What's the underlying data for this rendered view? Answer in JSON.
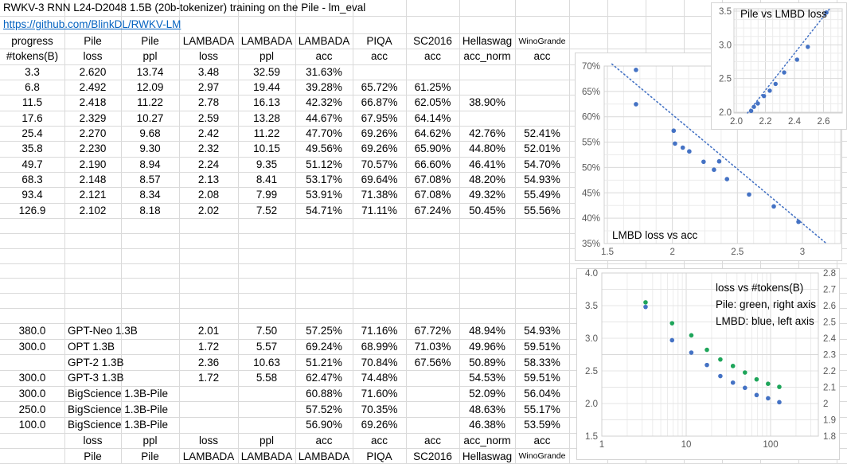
{
  "colors": {
    "blue": "#4472C4",
    "green": "#1EA55A",
    "link": "#0563C1"
  },
  "sheet": {
    "title": "RWKV-3 RNN L24-D2048 1.5B (20b-tokenizer) training on the Pile - lm_eval",
    "link": "https://github.com/BlinkDL/RWKV-LM",
    "top_header": [
      "progress",
      "Pile",
      "Pile",
      "LAMBADA",
      "LAMBADA",
      "LAMBADA",
      "PIQA",
      "SC2016",
      "Hellaswag",
      "WinoGrande"
    ],
    "sub_header": [
      "#tokens(B)",
      "loss",
      "ppl",
      "loss",
      "ppl",
      "acc",
      "acc",
      "acc",
      "acc_norm",
      "acc"
    ],
    "rwkv_rows": [
      [
        "3.3",
        "2.620",
        "13.74",
        "3.48",
        "32.59",
        "31.63%",
        "",
        "",
        "",
        ""
      ],
      [
        "6.8",
        "2.492",
        "12.09",
        "2.97",
        "19.44",
        "39.28%",
        "65.72%",
        "61.25%",
        "",
        ""
      ],
      [
        "11.5",
        "2.418",
        "11.22",
        "2.78",
        "16.13",
        "42.32%",
        "66.87%",
        "62.05%",
        "38.90%",
        ""
      ],
      [
        "17.6",
        "2.329",
        "10.27",
        "2.59",
        "13.28",
        "44.67%",
        "67.95%",
        "64.14%",
        "",
        ""
      ],
      [
        "25.4",
        "2.270",
        "9.68",
        "2.42",
        "11.22",
        "47.70%",
        "69.26%",
        "64.62%",
        "42.76%",
        "52.41%"
      ],
      [
        "35.8",
        "2.230",
        "9.30",
        "2.32",
        "10.15",
        "49.56%",
        "69.26%",
        "65.90%",
        "44.80%",
        "52.01%"
      ],
      [
        "49.7",
        "2.190",
        "8.94",
        "2.24",
        "9.35",
        "51.12%",
        "70.57%",
        "66.60%",
        "46.41%",
        "54.70%"
      ],
      [
        "68.3",
        "2.148",
        "8.57",
        "2.13",
        "8.41",
        "53.17%",
        "69.64%",
        "67.08%",
        "48.20%",
        "54.93%"
      ],
      [
        "93.4",
        "2.121",
        "8.34",
        "2.08",
        "7.99",
        "53.91%",
        "71.38%",
        "67.08%",
        "49.32%",
        "55.49%"
      ],
      [
        "126.9",
        "2.102",
        "8.18",
        "2.02",
        "7.52",
        "54.71%",
        "71.11%",
        "67.24%",
        "50.45%",
        "55.56%"
      ]
    ],
    "baseline_rows": [
      {
        "tokens": "380.0",
        "model": "GPT-Neo 1.3B",
        "cells": [
          "2.01",
          "7.50",
          "57.25%",
          "71.16%",
          "67.72%",
          "48.94%",
          "54.93%"
        ]
      },
      {
        "tokens": "300.0",
        "model": "OPT 1.3B",
        "cells": [
          "1.72",
          "5.57",
          "69.24%",
          "68.99%",
          "71.03%",
          "49.96%",
          "59.51%"
        ]
      },
      {
        "tokens": "",
        "model": "GPT-2 1.3B",
        "cells": [
          "2.36",
          "10.63",
          "51.21%",
          "70.84%",
          "67.56%",
          "50.89%",
          "58.33%"
        ]
      },
      {
        "tokens": "300.0",
        "model": "GPT-3 1.3B",
        "cells": [
          "1.72",
          "5.58",
          "62.47%",
          "74.48%",
          "",
          "54.53%",
          "59.51%"
        ]
      },
      {
        "tokens": "300.0",
        "model": "BigScience 1.3B-Pile",
        "cells": [
          "",
          "",
          "60.88%",
          "71.60%",
          "",
          "52.09%",
          "56.04%"
        ]
      },
      {
        "tokens": "250.0",
        "model": "BigScience 1.3B-Pile",
        "cells": [
          "",
          "",
          "57.52%",
          "70.35%",
          "",
          "48.63%",
          "55.17%"
        ]
      },
      {
        "tokens": "100.0",
        "model": "BigScience 1.3B-Pile",
        "cells": [
          "",
          "",
          "56.90%",
          "69.26%",
          "",
          "46.38%",
          "53.59%"
        ]
      }
    ],
    "footer_sub": [
      "",
      "loss",
      "ppl",
      "loss",
      "ppl",
      "acc",
      "acc",
      "acc",
      "acc_norm",
      "acc"
    ],
    "footer_main": [
      "",
      "Pile",
      "Pile",
      "LAMBADA",
      "LAMBADA",
      "LAMBADA",
      "PIQA",
      "SC2016",
      "Hellaswag",
      "WinoGrande"
    ]
  },
  "chart_data": [
    {
      "id": "pile-vs-lmbd-loss",
      "type": "scatter",
      "title": "Pile vs LMBD loss",
      "xlim": [
        2.0,
        2.73
      ],
      "ylim": [
        2.0,
        3.55
      ],
      "xticks": [
        "2.0",
        "2.2",
        "2.4",
        "2.6"
      ],
      "yticks": [
        "2.0",
        "2.5",
        "3.0",
        "3.5"
      ],
      "trendline": "dotted",
      "point_color": "#4472C4",
      "points": [
        [
          2.62,
          3.48
        ],
        [
          2.492,
          2.97
        ],
        [
          2.418,
          2.78
        ],
        [
          2.329,
          2.59
        ],
        [
          2.27,
          2.42
        ],
        [
          2.23,
          2.32
        ],
        [
          2.19,
          2.24
        ],
        [
          2.148,
          2.13
        ],
        [
          2.121,
          2.08
        ],
        [
          2.102,
          2.02
        ]
      ]
    },
    {
      "id": "lmbd-loss-vs-acc",
      "type": "scatter",
      "title": "LMBD loss vs acc",
      "xlim": [
        1.47,
        3.29
      ],
      "ylim": [
        35,
        70
      ],
      "xticks": [
        "1.5",
        "2",
        "2.5",
        "3"
      ],
      "yticks": [
        "35%",
        "40%",
        "45%",
        "50%",
        "55%",
        "60%",
        "65%",
        "70%"
      ],
      "trendline": "dotted",
      "point_color": "#4472C4",
      "points": [
        [
          3.48,
          31.63
        ],
        [
          2.97,
          39.28
        ],
        [
          2.78,
          42.32
        ],
        [
          2.59,
          44.67
        ],
        [
          2.42,
          47.7
        ],
        [
          2.32,
          49.56
        ],
        [
          2.24,
          51.12
        ],
        [
          2.13,
          53.17
        ],
        [
          2.08,
          53.91
        ],
        [
          2.02,
          54.71
        ],
        [
          2.01,
          57.25
        ],
        [
          2.36,
          51.21
        ],
        [
          1.72,
          62.47
        ],
        [
          1.72,
          69.24
        ]
      ]
    },
    {
      "id": "loss-vs-tokens",
      "type": "scatter",
      "x_scale": "log",
      "legend": [
        "loss vs #tokens(B)",
        "Pile: green, right axis",
        "LMBD: blue, left axis"
      ],
      "xticks": [
        "1",
        "10",
        "100"
      ],
      "left_ylim": [
        1.5,
        4.0
      ],
      "left_yticks": [
        "4.0",
        "3.5",
        "3.0",
        "2.5",
        "2.0",
        "1.5"
      ],
      "right_ylim": [
        1.8,
        2.8
      ],
      "right_yticks": [
        "2.8",
        "2.7",
        "2.6",
        "2.5",
        "2.4",
        "2.3",
        "2.2",
        "2.1",
        "2",
        "1.9",
        "1.8"
      ],
      "categories": [
        3.3,
        6.8,
        11.5,
        17.6,
        25.4,
        35.8,
        49.7,
        68.3,
        93.4,
        126.9
      ],
      "series": [
        {
          "name": "LMBD",
          "axis": "left",
          "color": "#4472C4",
          "values": [
            3.48,
            2.97,
            2.78,
            2.59,
            2.42,
            2.32,
            2.24,
            2.13,
            2.08,
            2.02
          ]
        },
        {
          "name": "Pile",
          "axis": "right",
          "color": "#1EA55A",
          "values": [
            2.62,
            2.492,
            2.418,
            2.329,
            2.27,
            2.23,
            2.19,
            2.148,
            2.121,
            2.102
          ]
        }
      ]
    }
  ]
}
